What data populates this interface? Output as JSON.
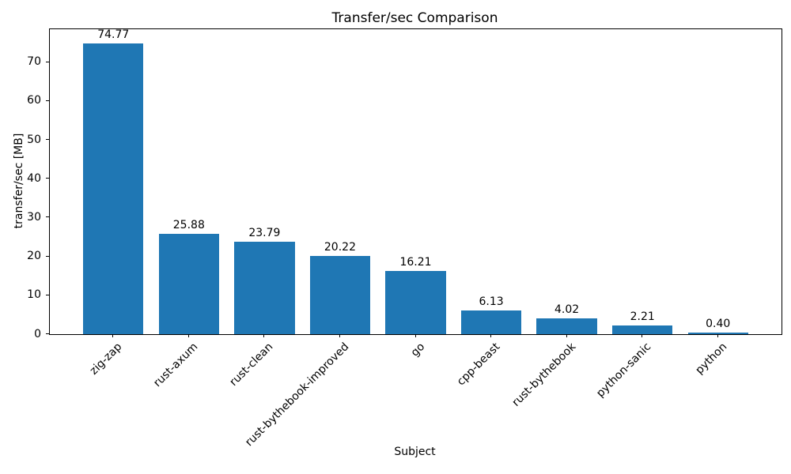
{
  "chart_data": {
    "type": "bar",
    "title": "Transfer/sec Comparison",
    "xlabel": "Subject",
    "ylabel": "transfer/sec [MB]",
    "categories": [
      "zig-zap",
      "rust-axum",
      "rust-clean",
      "rust-bythebook-improved",
      "go",
      "cpp-beast",
      "rust-bythebook",
      "python-sanic",
      "python"
    ],
    "values": [
      74.77,
      25.88,
      23.79,
      20.22,
      16.21,
      6.13,
      4.02,
      2.21,
      0.4
    ],
    "bar_labels": [
      "74.77",
      "25.88",
      "23.79",
      "20.22",
      "16.21",
      "6.13",
      "4.02",
      "2.21",
      "0.40"
    ],
    "yticks": [
      0,
      10,
      20,
      30,
      40,
      50,
      60,
      70
    ],
    "ylim": [
      0,
      78.5
    ],
    "bar_color": "#1f77b4",
    "axis_color": "#000000",
    "background_color": "#ffffff",
    "grid": false,
    "legend_position": "none",
    "x_tick_rotation_deg": 45,
    "bar_rel_width": 0.8
  }
}
